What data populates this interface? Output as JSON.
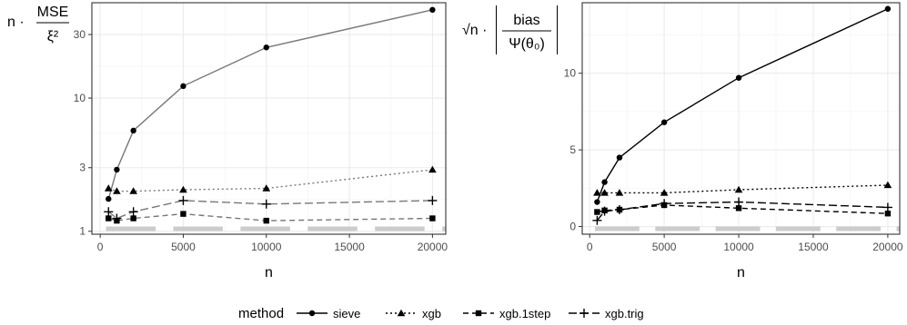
{
  "chart_data": [
    {
      "type": "line",
      "title": "",
      "xlabel": "n",
      "ylabel_parts": {
        "prefix": "n ·",
        "numerator": "MSE",
        "denominator": "ξ²"
      },
      "yscale": "log",
      "xlim": [
        -500,
        20800
      ],
      "ylim": [
        0.95,
        52
      ],
      "x_ticks": [
        0,
        5000,
        10000,
        15000,
        20000
      ],
      "x_tick_labels": [
        "0",
        "5000",
        "10000",
        "15000",
        "20000"
      ],
      "y_ticks": [
        1,
        3,
        10,
        30
      ],
      "y_tick_labels": [
        "1",
        "3",
        "10",
        "30"
      ],
      "grid": true,
      "x": [
        500,
        1000,
        2000,
        5000,
        10000,
        20000
      ],
      "series": [
        {
          "name": "sieve",
          "values": [
            1.75,
            2.9,
            5.7,
            12.3,
            24.0,
            46.0
          ]
        },
        {
          "name": "xgb",
          "values": [
            2.1,
            2.0,
            2.0,
            2.05,
            2.1,
            2.9
          ]
        },
        {
          "name": "xgb.1step",
          "values": [
            1.25,
            1.2,
            1.25,
            1.35,
            1.2,
            1.25
          ]
        },
        {
          "name": "xgb.trig",
          "values": [
            1.4,
            1.25,
            1.4,
            1.7,
            1.6,
            1.7
          ]
        }
      ]
    },
    {
      "type": "line",
      "title": "",
      "xlabel": "n",
      "ylabel_parts": {
        "prefix": "√n ·",
        "numerator": "bias",
        "denominator": "Ψ(θ₀)"
      },
      "yscale": "linear",
      "xlim": [
        -500,
        20800
      ],
      "ylim": [
        -0.5,
        14.6
      ],
      "x_ticks": [
        0,
        5000,
        10000,
        15000,
        20000
      ],
      "x_tick_labels": [
        "0",
        "5000",
        "10000",
        "15000",
        "20000"
      ],
      "y_ticks": [
        0,
        5,
        10
      ],
      "y_tick_labels": [
        "0",
        "5",
        "10"
      ],
      "grid": true,
      "x": [
        500,
        1000,
        2000,
        5000,
        10000,
        20000
      ],
      "series": [
        {
          "name": "sieve",
          "values": [
            1.6,
            2.9,
            4.5,
            6.8,
            9.7,
            14.2
          ]
        },
        {
          "name": "xgb",
          "values": [
            2.2,
            2.2,
            2.2,
            2.2,
            2.4,
            2.7
          ]
        },
        {
          "name": "xgb.1step",
          "values": [
            0.95,
            1.05,
            1.1,
            1.4,
            1.2,
            0.85
          ]
        },
        {
          "name": "xgb.trig",
          "values": [
            0.4,
            1.0,
            1.1,
            1.5,
            1.6,
            1.25
          ]
        }
      ]
    }
  ],
  "legend": {
    "title": "method",
    "position": "bottom",
    "items": [
      "sieve",
      "xgb",
      "xgb.1step",
      "xgb.trig"
    ]
  },
  "styles": {
    "panel_colors": [
      "#777777",
      "#000000"
    ],
    "linetypes": [
      "solid",
      "dotted",
      "dashed",
      "longdash"
    ],
    "shapes": [
      "circle",
      "triangle",
      "square",
      "plus"
    ],
    "grid_major_color": "#ebebeb",
    "grid_minor_color": "#f5f5f5",
    "panel_border_color": "#333333",
    "rug_color": "#cccccc"
  }
}
